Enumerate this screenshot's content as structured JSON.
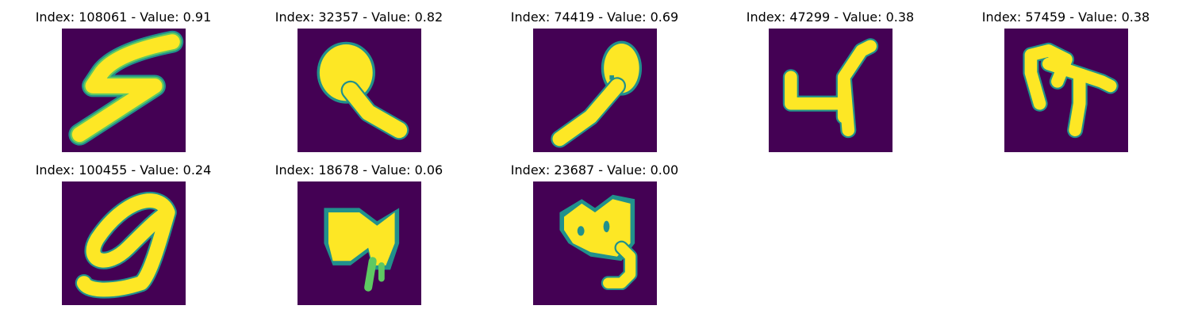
{
  "colors": {
    "background": "#440154",
    "edge_1": "#3b528b",
    "edge_2": "#21918c",
    "edge_3": "#5ec962",
    "stroke": "#fde725"
  },
  "panels": [
    {
      "title": "Index: 108061 - Value: 0.91",
      "index": 108061,
      "value": 0.91,
      "glyph": "S-shaped stroke"
    },
    {
      "title": "Index: 32357 - Value: 0.82",
      "index": 32357,
      "value": 0.82,
      "glyph": "round head with tail"
    },
    {
      "title": "Index: 74419 - Value: 0.69",
      "index": 74419,
      "value": 0.69,
      "glyph": "slanted loop with dot"
    },
    {
      "title": "Index: 47299 - Value: 0.38",
      "index": 47299,
      "value": 0.38,
      "glyph": "4-shaped stroke"
    },
    {
      "title": "Index: 57459 - Value: 0.38",
      "index": 57459,
      "value": 0.38,
      "glyph": "T-shaped stroke"
    },
    {
      "title": "Index: 100455 - Value: 0.24",
      "index": 100455,
      "value": 0.24,
      "glyph": "9-shaped loop"
    },
    {
      "title": "Index: 18678 - Value: 0.06",
      "index": 18678,
      "value": 0.06,
      "glyph": "M-shaped blob"
    },
    {
      "title": "Index: 23687 - Value: 0.00",
      "index": 23687,
      "value": 0.0,
      "glyph": "blob with two holes and tail"
    }
  ]
}
